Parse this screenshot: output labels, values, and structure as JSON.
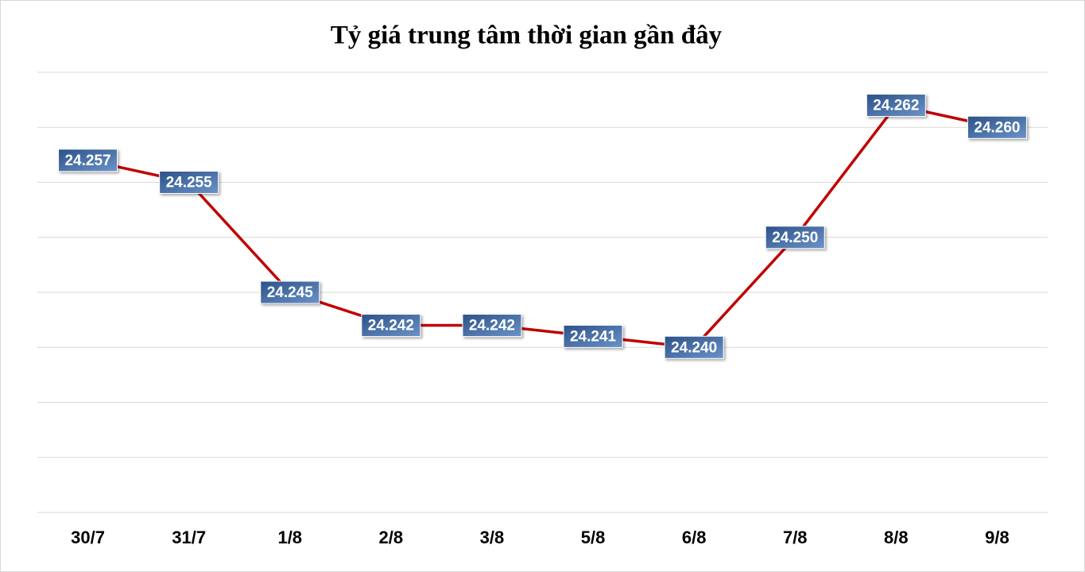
{
  "chart_data": {
    "type": "line",
    "title": "Tỷ giá trung tâm thời gian gần đây",
    "categories": [
      "30/7",
      "31/7",
      "1/8",
      "2/8",
      "3/8",
      "5/8",
      "6/8",
      "7/8",
      "8/8",
      "9/8"
    ],
    "series": [
      {
        "color": "#c00000",
        "values": [
          24.257,
          24.255,
          24.245,
          24.242,
          24.242,
          24.241,
          24.24,
          24.25,
          24.262,
          24.26
        ],
        "value_labels": [
          "24.257",
          "24.255",
          "24.245",
          "24.242",
          "24.242",
          "24.241",
          "24.240",
          "24.250",
          "24.262",
          "24.260"
        ]
      }
    ],
    "ylim": [
      24.225,
      24.265
    ],
    "yticks": [
      24.225,
      24.23,
      24.235,
      24.24,
      24.245,
      24.25,
      24.255,
      24.26,
      24.265
    ],
    "grid": true
  }
}
